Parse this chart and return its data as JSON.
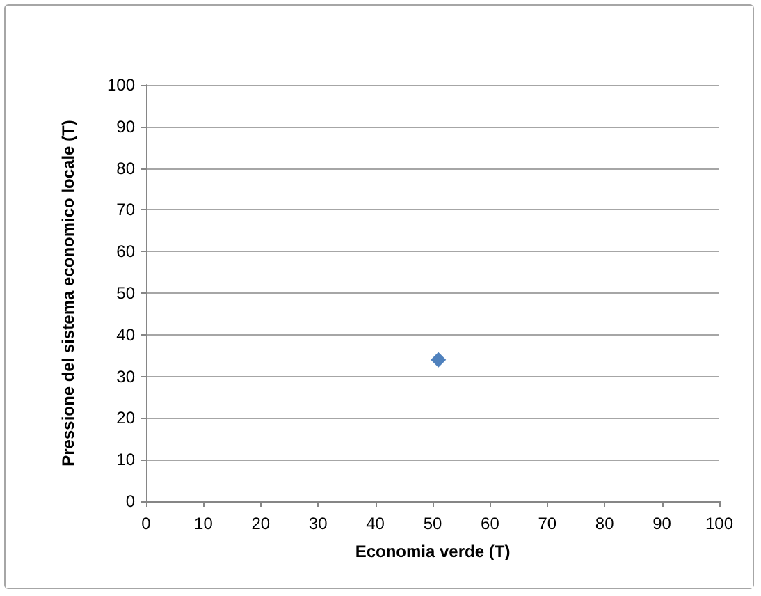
{
  "chart_data": {
    "type": "scatter",
    "xlabel": "Economia verde (T)",
    "ylabel": "Pressione del sistema economico locale (T)",
    "x": [
      51
    ],
    "values": [
      34
    ],
    "color": "#4f81bd",
    "marker": "diamond",
    "xlim": [
      0,
      100
    ],
    "xticks": [
      0,
      10,
      20,
      30,
      40,
      50,
      60,
      70,
      80,
      90,
      100
    ],
    "ylim": [
      0,
      100
    ],
    "yticks": [
      0,
      10,
      20,
      30,
      40,
      50,
      60,
      70,
      80,
      90,
      100
    ],
    "grid": "y"
  }
}
